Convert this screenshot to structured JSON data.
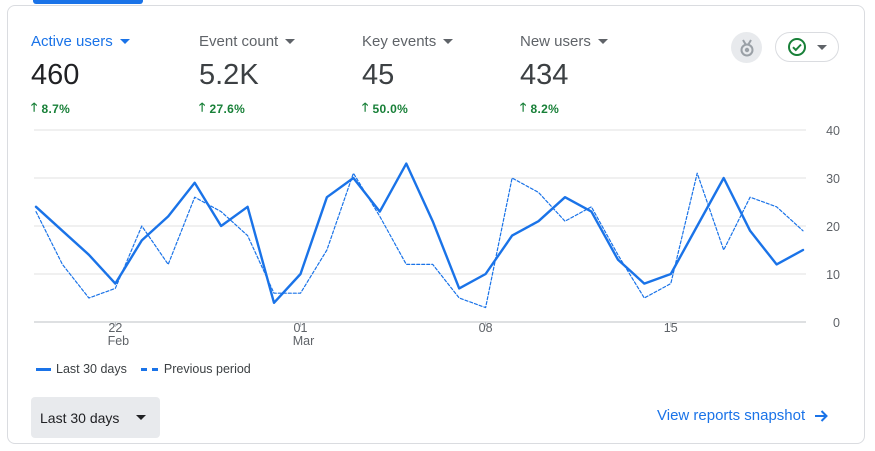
{
  "metrics": [
    {
      "label": "Active users",
      "value": "460",
      "change": "8.7%",
      "active": true
    },
    {
      "label": "Event count",
      "value": "5.2K",
      "change": "27.6%",
      "active": false
    },
    {
      "label": "Key events",
      "value": "45",
      "change": "50.0%",
      "active": false
    },
    {
      "label": "New users",
      "value": "434",
      "change": "8.2%",
      "active": false
    }
  ],
  "icons": {
    "change_arrow": "arrow-up-icon",
    "insights": "insights-medal-icon",
    "status": "check-circle-icon",
    "snapshot": "arrow-right-icon"
  },
  "colors": {
    "accent": "#1a73e8",
    "positive": "#188038",
    "grid": "#e0e0e0",
    "axis_text": "#5f6368"
  },
  "chart_data": {
    "type": "line",
    "title": "",
    "xlabel": "",
    "ylabel": "",
    "ylim": [
      0,
      40
    ],
    "yticks": [
      0,
      10,
      20,
      30,
      40
    ],
    "x_tick_labels": [
      {
        "index": 3,
        "day": "22",
        "month": "Feb"
      },
      {
        "index": 10,
        "day": "01",
        "month": "Mar"
      },
      {
        "index": 17,
        "day": "08",
        "month": ""
      },
      {
        "index": 24,
        "day": "15",
        "month": ""
      }
    ],
    "series": [
      {
        "name": "Last 30 days",
        "style": "solid",
        "values": [
          24,
          19,
          14,
          8,
          17,
          22,
          29,
          20,
          24,
          4,
          10,
          26,
          30,
          23,
          33,
          21,
          7,
          10,
          18,
          21,
          26,
          23,
          13,
          8,
          10,
          20,
          30,
          19,
          12,
          15
        ]
      },
      {
        "name": "Previous period",
        "style": "dashed",
        "values": [
          23,
          12,
          5,
          7,
          20,
          12,
          26,
          23,
          18,
          6,
          6,
          15,
          31,
          22,
          12,
          12,
          5,
          3,
          30,
          27,
          21,
          24,
          14,
          5,
          8,
          31,
          15,
          26,
          24,
          19
        ]
      }
    ]
  },
  "legend": {
    "current_label": "Last 30 days",
    "previous_label": "Previous period"
  },
  "controls": {
    "range_label": "Last 30 days",
    "snapshot_label": "View reports snapshot"
  }
}
